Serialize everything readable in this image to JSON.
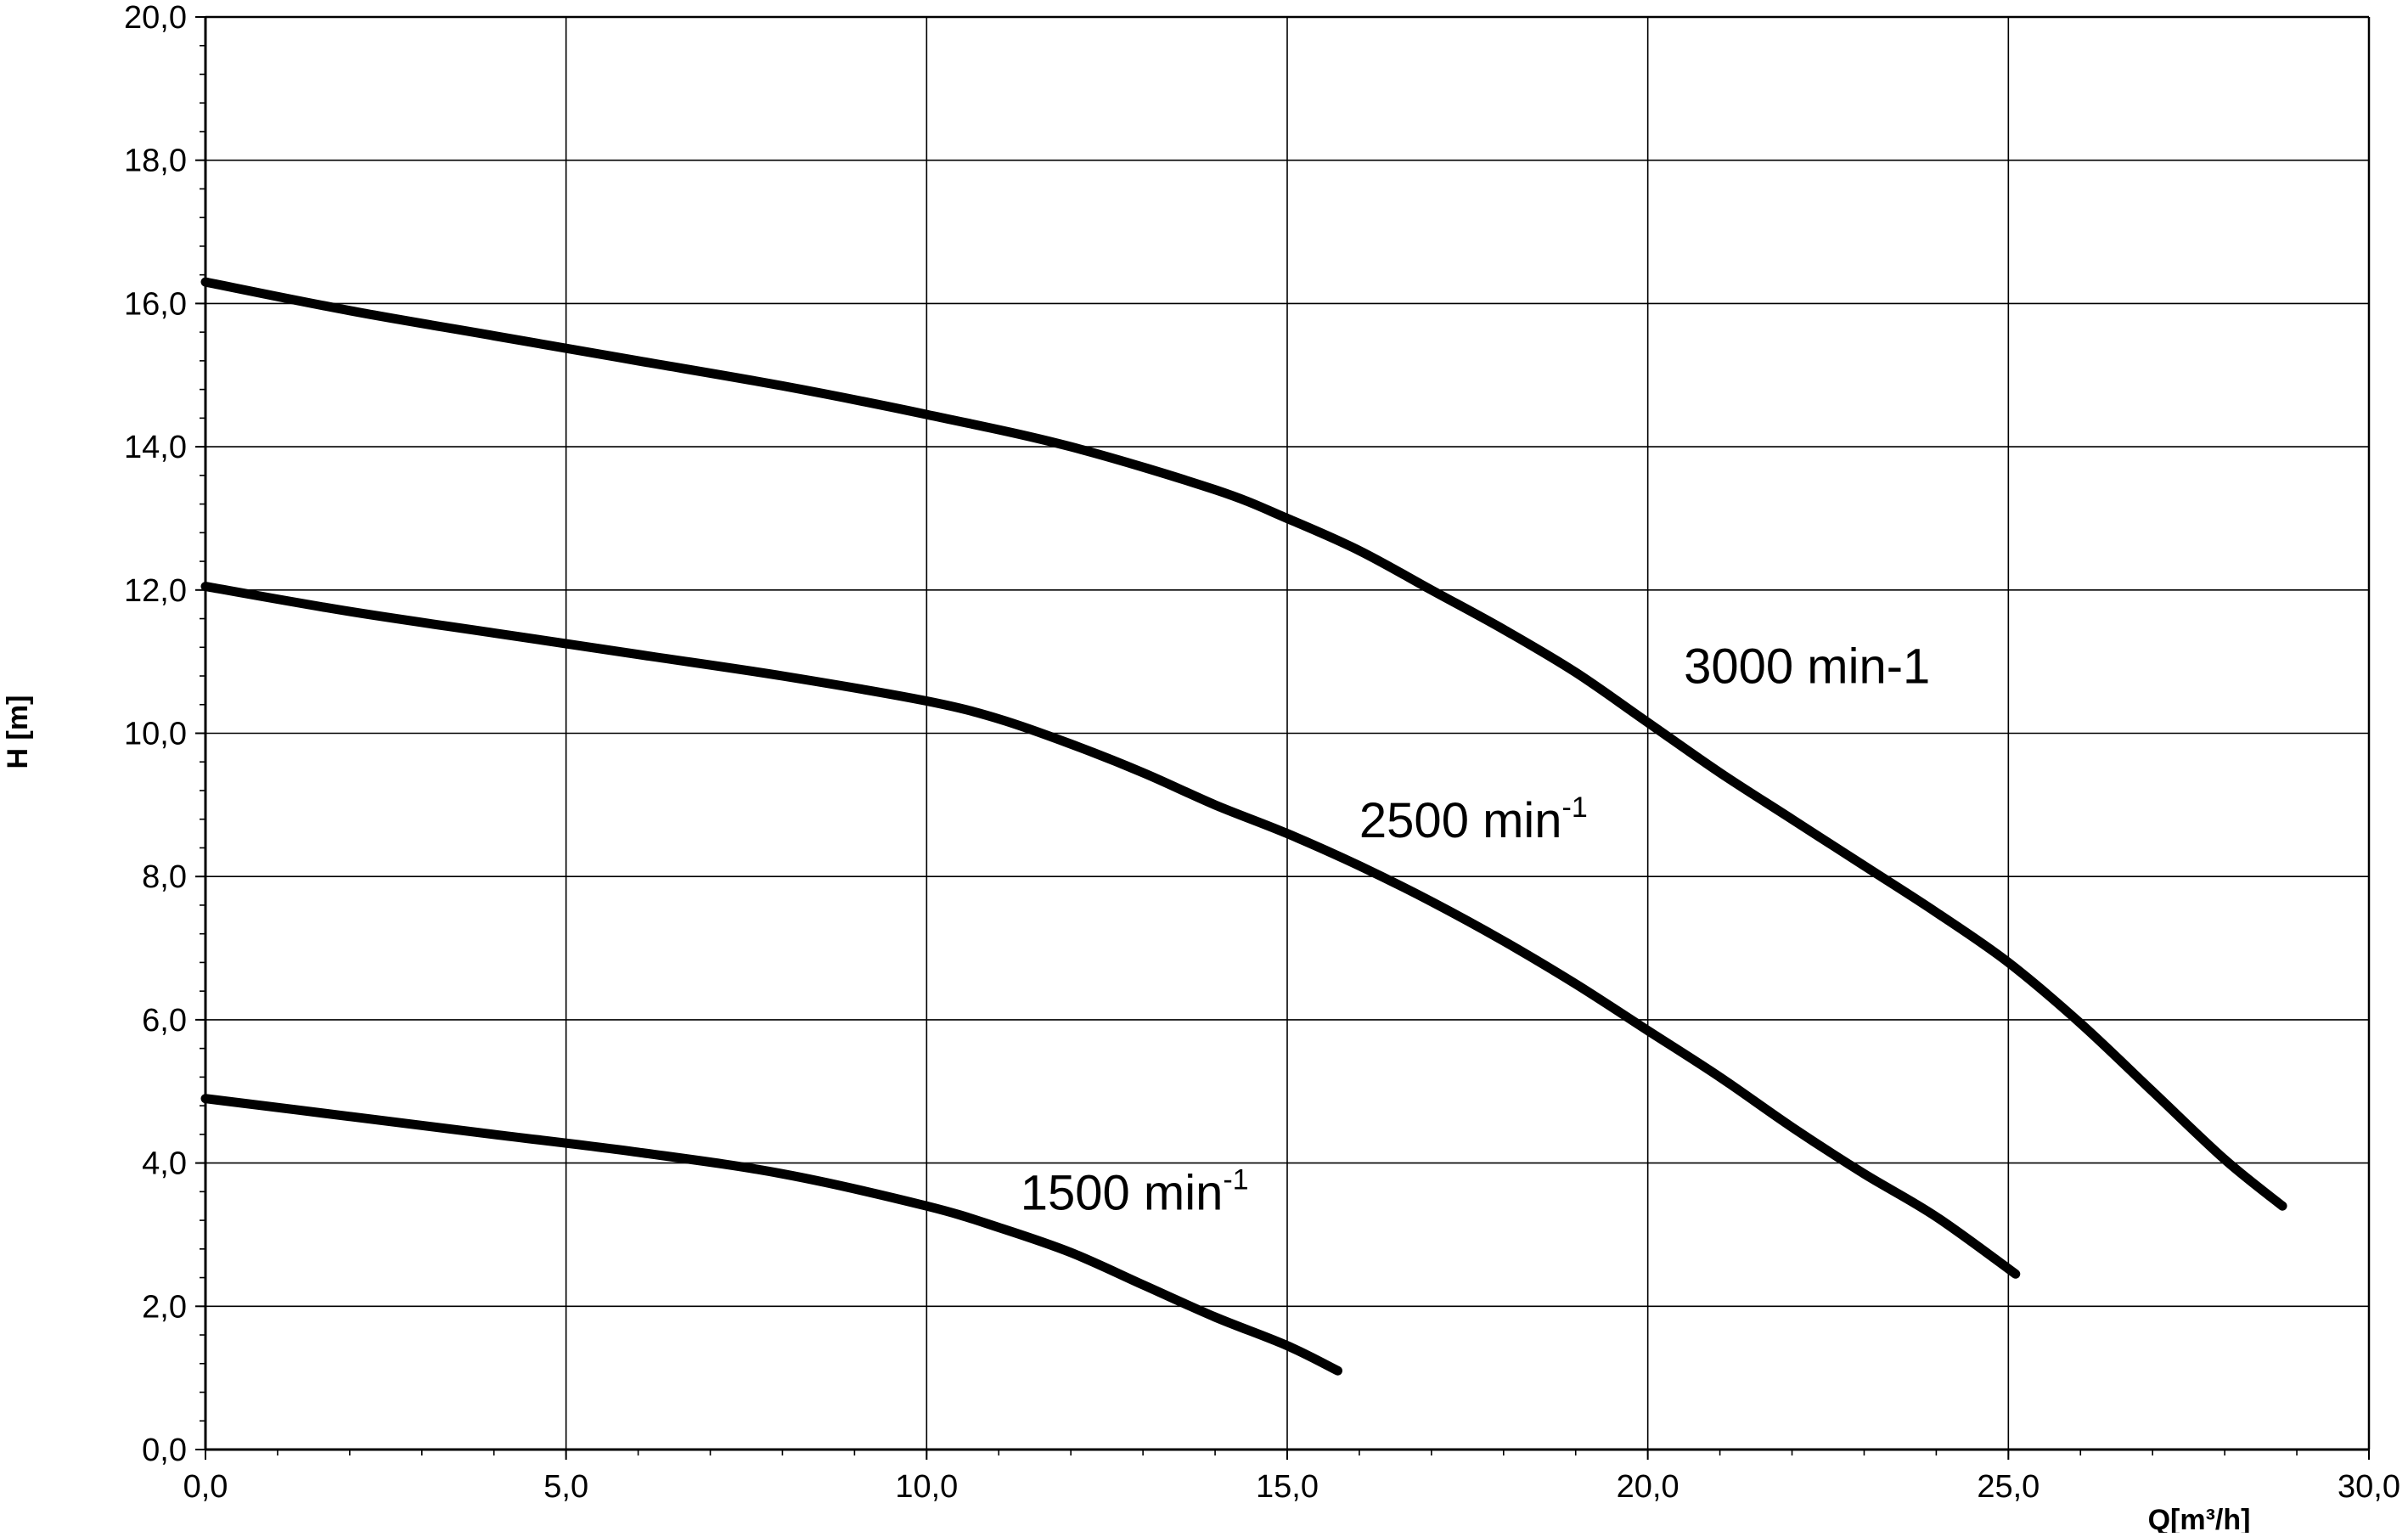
{
  "chart_data": {
    "type": "line",
    "title": "",
    "xlabel": "Q[m³/h]",
    "ylabel": "H [m]",
    "xlim": [
      0,
      30
    ],
    "ylim": [
      0,
      20
    ],
    "x_ticks": [
      "0,0",
      "5,0",
      "10,0",
      "15,0",
      "20,0",
      "25,0",
      "30,0"
    ],
    "y_ticks": [
      "0,0",
      "2,0",
      "4,0",
      "6,0",
      "8,0",
      "10,0",
      "12,0",
      "14,0",
      "16,0",
      "18,0",
      "20,0"
    ],
    "grid": true,
    "legend": "none",
    "series": [
      {
        "name": "3000 min-1",
        "label_text": "3000 min-1",
        "label_sup": "",
        "points": [
          [
            0.0,
            16.3
          ],
          [
            2.0,
            15.9
          ],
          [
            4.0,
            15.55
          ],
          [
            6.0,
            15.2
          ],
          [
            8.0,
            14.85
          ],
          [
            10.0,
            14.45
          ],
          [
            12.0,
            14.0
          ],
          [
            14.0,
            13.4
          ],
          [
            15.0,
            13.0
          ],
          [
            16.0,
            12.55
          ],
          [
            17.0,
            12.0
          ],
          [
            18.0,
            11.45
          ],
          [
            19.0,
            10.85
          ],
          [
            20.0,
            10.15
          ],
          [
            21.0,
            9.45
          ],
          [
            22.0,
            8.8
          ],
          [
            23.0,
            8.15
          ],
          [
            24.0,
            7.5
          ],
          [
            25.0,
            6.8
          ],
          [
            26.0,
            5.95
          ],
          [
            27.0,
            5.0
          ],
          [
            28.0,
            4.05
          ],
          [
            28.8,
            3.4
          ]
        ]
      },
      {
        "name": "2500 min-1",
        "label_text": "2500 min",
        "label_sup": "-1",
        "points": [
          [
            0.0,
            12.05
          ],
          [
            2.0,
            11.7
          ],
          [
            4.0,
            11.4
          ],
          [
            6.0,
            11.1
          ],
          [
            8.0,
            10.8
          ],
          [
            10.0,
            10.45
          ],
          [
            11.0,
            10.2
          ],
          [
            12.0,
            9.85
          ],
          [
            13.0,
            9.45
          ],
          [
            14.0,
            9.0
          ],
          [
            15.0,
            8.6
          ],
          [
            16.0,
            8.15
          ],
          [
            17.0,
            7.65
          ],
          [
            18.0,
            7.1
          ],
          [
            19.0,
            6.5
          ],
          [
            20.0,
            5.85
          ],
          [
            21.0,
            5.2
          ],
          [
            22.0,
            4.5
          ],
          [
            23.0,
            3.85
          ],
          [
            24.0,
            3.25
          ],
          [
            25.1,
            2.45
          ]
        ]
      },
      {
        "name": "1500 min-1",
        "label_text": "1500 min",
        "label_sup": "-1",
        "points": [
          [
            0.0,
            4.9
          ],
          [
            2.0,
            4.65
          ],
          [
            4.0,
            4.4
          ],
          [
            6.0,
            4.15
          ],
          [
            8.0,
            3.85
          ],
          [
            10.0,
            3.4
          ],
          [
            11.0,
            3.1
          ],
          [
            12.0,
            2.75
          ],
          [
            13.0,
            2.3
          ],
          [
            14.0,
            1.85
          ],
          [
            15.0,
            1.45
          ],
          [
            15.7,
            1.1
          ]
        ]
      }
    ],
    "colors": {
      "line": "#000000",
      "grid": "#000000",
      "background": "#ffffff"
    }
  }
}
